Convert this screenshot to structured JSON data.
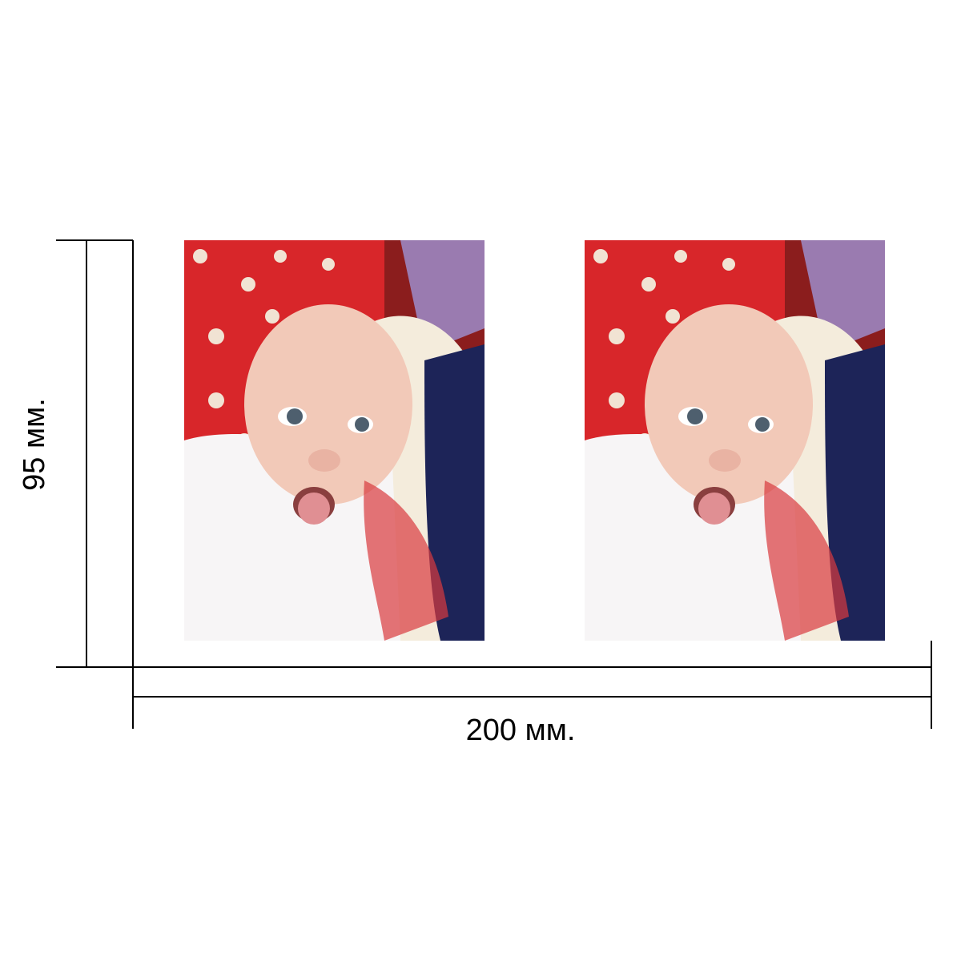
{
  "dimensions": {
    "width_label": "200 мм.",
    "height_label": "95 мм."
  },
  "photos": [
    {
      "name": "photo-left",
      "subject": "baby-sticking-out-tongue"
    },
    {
      "name": "photo-right",
      "subject": "baby-sticking-out-tongue"
    }
  ],
  "colors": {
    "line": "#000000",
    "background": "#ffffff"
  }
}
